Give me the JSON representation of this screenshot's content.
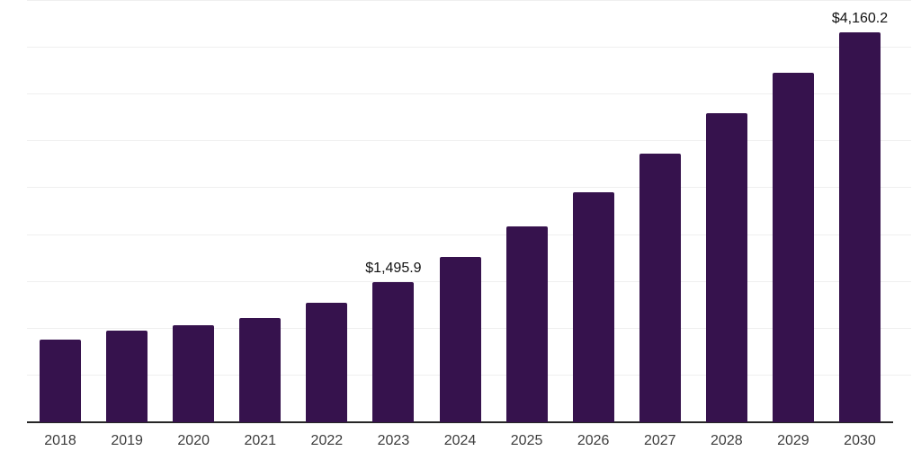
{
  "chart": {
    "background": "#ffffff",
    "bar_color": "#36124d",
    "axis_line_color": "#262626",
    "gridline_color": "#efefef",
    "value_label_color": "#111111",
    "tick_label_color": "#3c3c3c"
  },
  "chart_data": {
    "type": "bar",
    "title": "",
    "xlabel": "",
    "ylabel": "",
    "categories": [
      "2018",
      "2019",
      "2020",
      "2021",
      "2022",
      "2023",
      "2024",
      "2025",
      "2026",
      "2027",
      "2028",
      "2029",
      "2030"
    ],
    "values": [
      885,
      980,
      1040,
      1115,
      1280,
      1495.9,
      1770,
      2095,
      2460,
      2865,
      3300,
      3730,
      4160.2
    ],
    "value_labels": {
      "2023": "$1,495.9",
      "2030": "$4,160.2"
    },
    "ylim": [
      0,
      4500
    ],
    "gridline_step": 500,
    "grid": "horizontal-only",
    "y_axis_tick_labels": "hidden",
    "legend": "none"
  }
}
